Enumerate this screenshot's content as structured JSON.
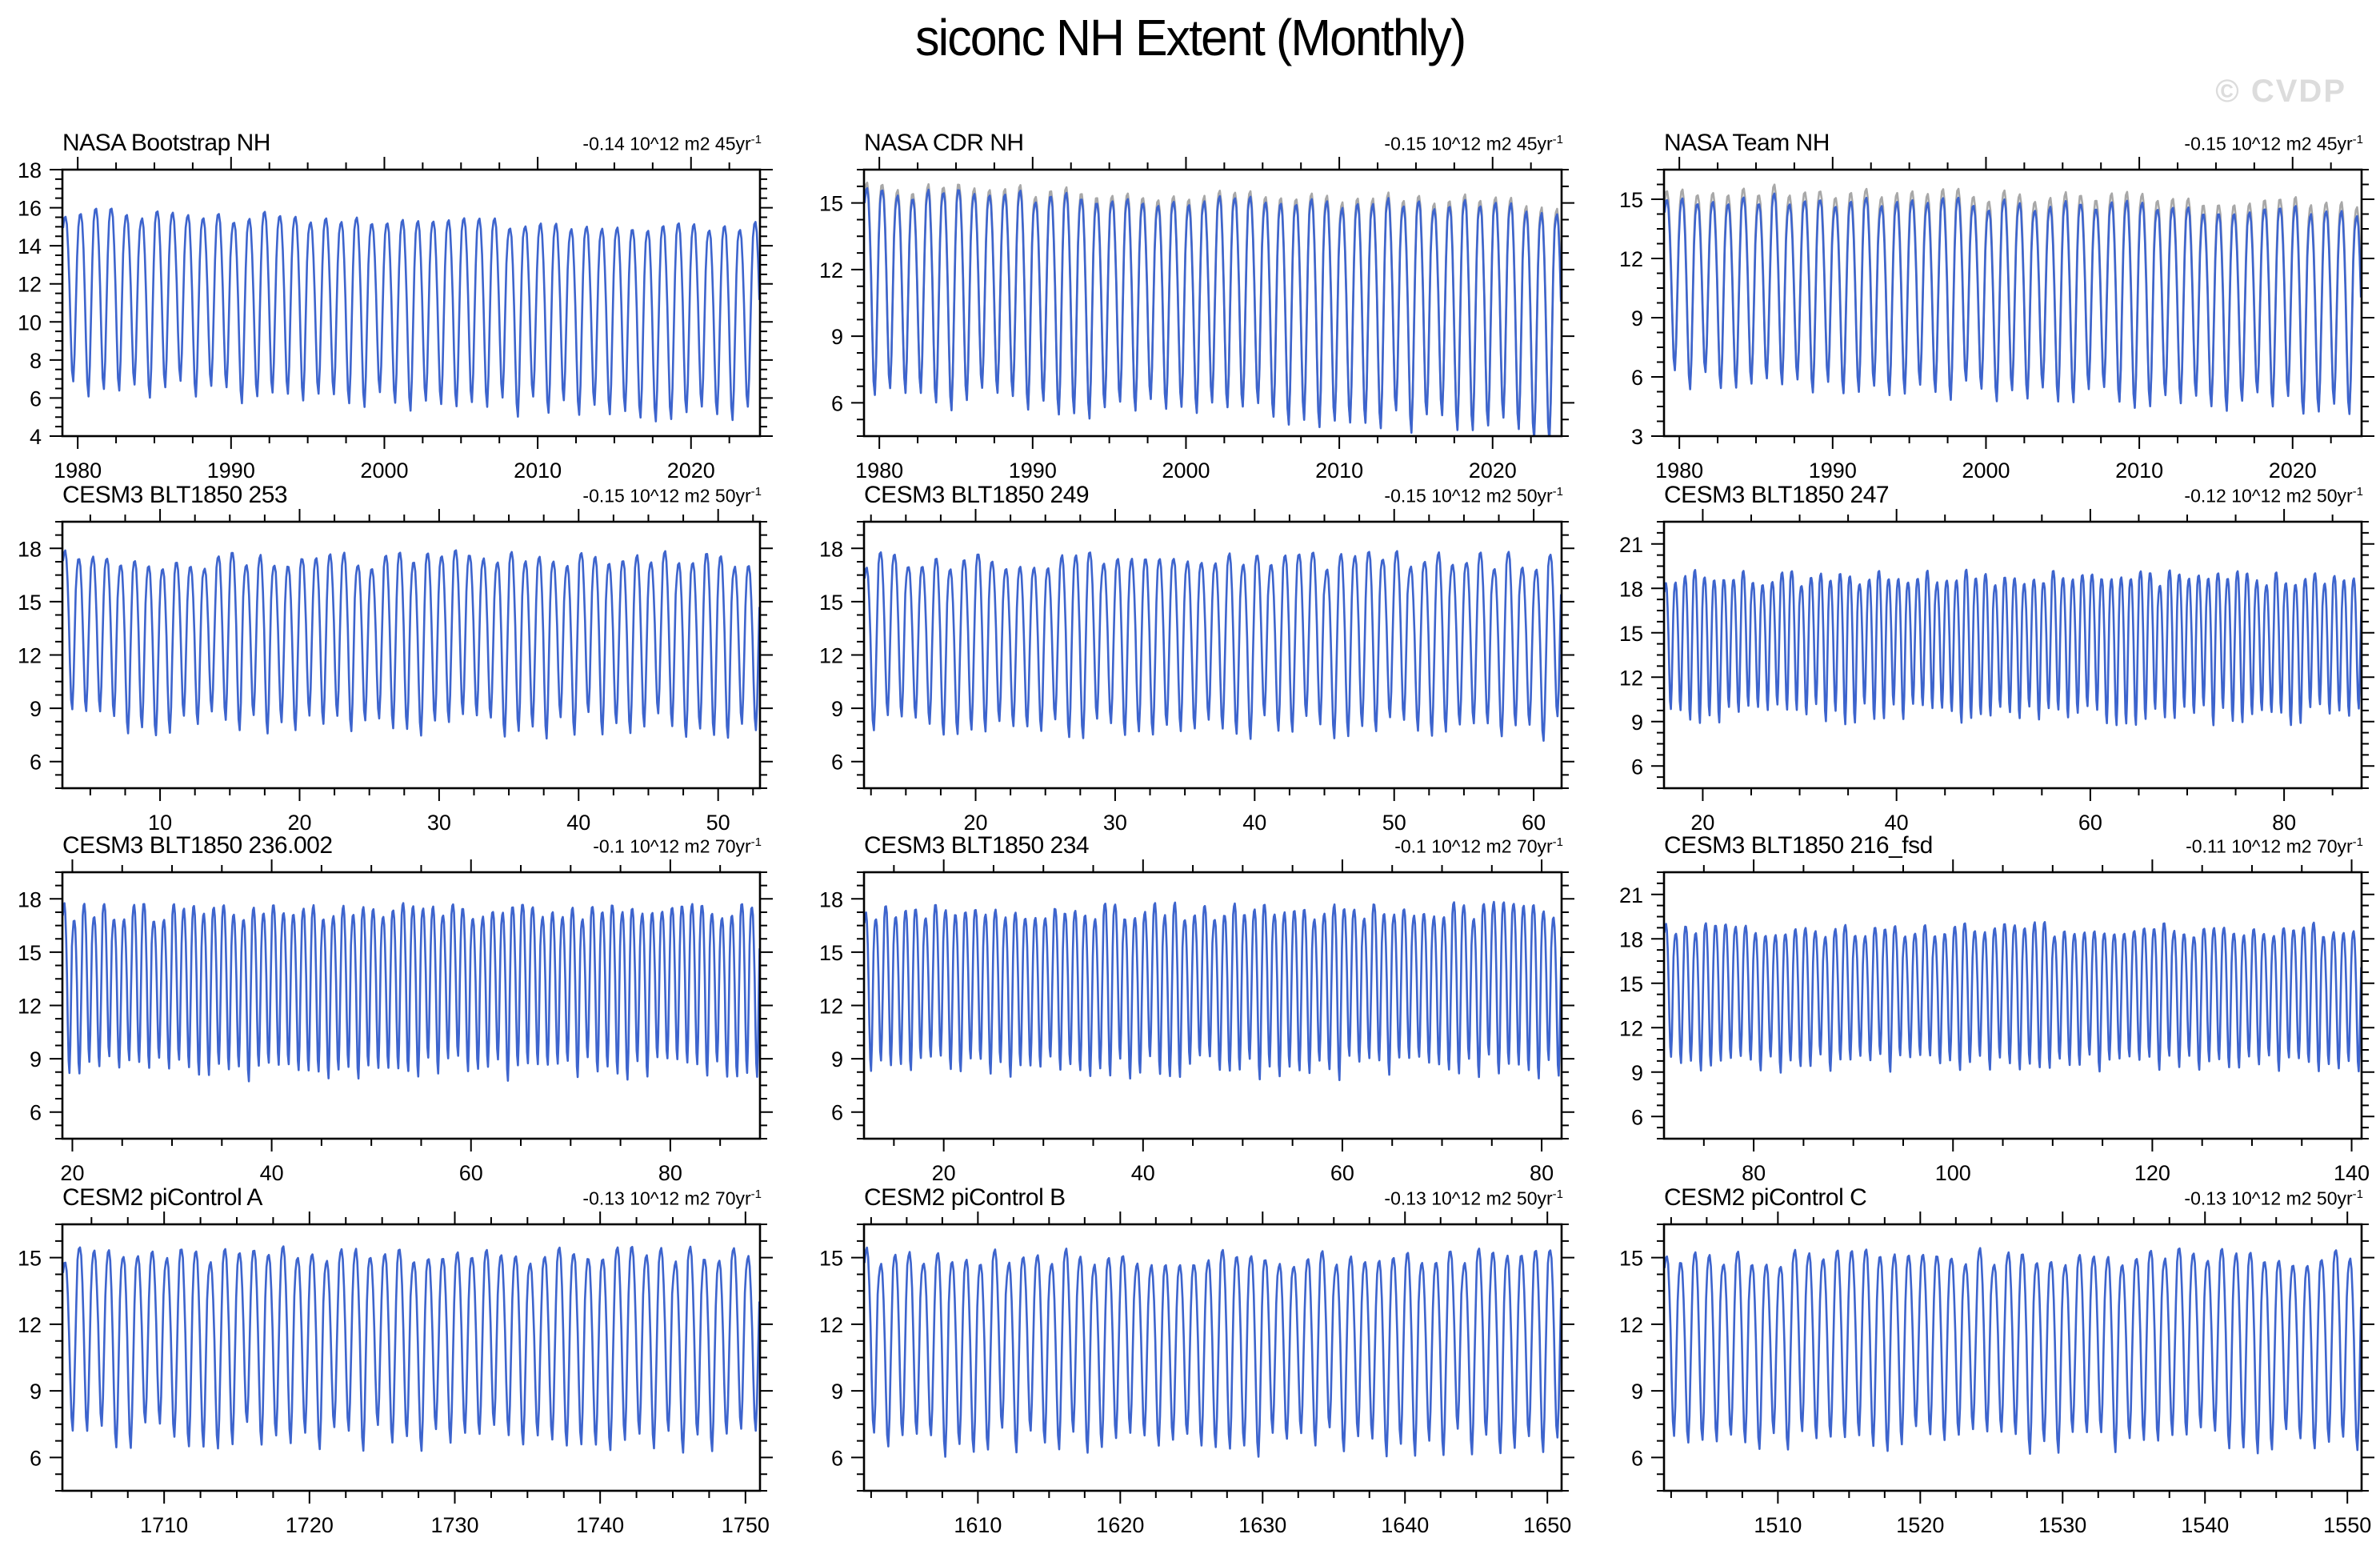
{
  "page": {
    "title": "siconc NH Extent (Monthly)",
    "watermark": "© CVDP"
  },
  "colors": {
    "line_blue": "#3D64CD",
    "line_gray": "#A8A8A8",
    "axis": "#000000",
    "watermark_gray": "#DCDCDC"
  },
  "chart_data": {
    "type": "line",
    "title": "siconc NH Extent (Monthly)",
    "units": "10^12 m2",
    "grid": false,
    "legend": "none",
    "layout": "4 rows x 3 columns of seasonal-cycle time series panels",
    "seasonal_profile_months": [
      0.93,
      0.99,
      1.0,
      0.95,
      0.8,
      0.58,
      0.3,
      0.07,
      0.0,
      0.16,
      0.46,
      0.75
    ],
    "panels": [
      {
        "name": "NASA Bootstrap NH",
        "trend": "-0.14 10^12 m2 45yr",
        "trend_sup": "-1",
        "xlim": [
          1979,
          2024.5
        ],
        "xticks": [
          1980,
          1990,
          2000,
          2010,
          2020
        ],
        "xminor": 2.5,
        "ylim": [
          4,
          18
        ],
        "yticks": [
          4,
          6,
          8,
          10,
          12,
          14,
          16,
          18
        ],
        "yminor": 0.5,
        "seasonal_max_mean": 15.75,
        "seasonal_max_jitter": 0.3,
        "max_trend": -0.85,
        "seasonal_min_mean": 6.6,
        "seasonal_min_jitter": 0.55,
        "min_trend": -1.6,
        "gray_line_offset": 0,
        "seed": 101
      },
      {
        "name": "NASA CDR NH",
        "trend": "-0.15 10^12 m2 45yr",
        "trend_sup": "-1",
        "xlim": [
          1979,
          2024.5
        ],
        "xticks": [
          1980,
          1990,
          2000,
          2010,
          2020
        ],
        "xminor": 2.5,
        "ylim": [
          4.5,
          16.5
        ],
        "yticks": [
          6,
          9,
          12,
          15
        ],
        "yminor": 0.75,
        "seasonal_max_mean": 15.5,
        "seasonal_max_jitter": 0.3,
        "max_trend": -0.8,
        "seasonal_min_mean": 6.3,
        "seasonal_min_jitter": 0.55,
        "min_trend": -1.5,
        "gray_line_offset": 0.25,
        "seed": 102
      },
      {
        "name": "NASA Team NH",
        "trend": "-0.15 10^12 m2 45yr",
        "trend_sup": "-1",
        "xlim": [
          1979,
          2024.5
        ],
        "xticks": [
          1980,
          1990,
          2000,
          2010,
          2020
        ],
        "xminor": 2.5,
        "ylim": [
          3,
          16.5
        ],
        "yticks": [
          3,
          6,
          9,
          12,
          15
        ],
        "yminor": 0.75,
        "seasonal_max_mean": 15.1,
        "seasonal_max_jitter": 0.3,
        "max_trend": -0.8,
        "seasonal_min_mean": 5.9,
        "seasonal_min_jitter": 0.55,
        "min_trend": -1.5,
        "gray_line_offset": 0.45,
        "seed": 103
      },
      {
        "name": "CESM3 BLT1850 253",
        "trend": "-0.15 10^12 m2 50yr",
        "trend_sup": "-1",
        "xlim": [
          3,
          53
        ],
        "xticks": [
          10,
          20,
          30,
          40,
          50
        ],
        "xminor": 2.5,
        "ylim": [
          4.5,
          19.5
        ],
        "yticks": [
          6,
          9,
          12,
          15,
          18
        ],
        "yminor": 0.75,
        "seasonal_max_mean": 17.35,
        "seasonal_max_jitter": 0.55,
        "max_trend": 0,
        "seasonal_min_mean": 8.2,
        "seasonal_min_jitter": 0.75,
        "min_trend": -0.2,
        "gray_line_offset": 0,
        "seed": 104
      },
      {
        "name": "CESM3 BLT1850 249",
        "trend": "-0.15 10^12 m2 50yr",
        "trend_sup": "-1",
        "xlim": [
          12,
          62
        ],
        "xticks": [
          20,
          30,
          40,
          50,
          60
        ],
        "xminor": 2.5,
        "ylim": [
          4.5,
          19.5
        ],
        "yticks": [
          6,
          9,
          12,
          15,
          18
        ],
        "yminor": 0.75,
        "seasonal_max_mean": 17.3,
        "seasonal_max_jitter": 0.55,
        "max_trend": 0,
        "seasonal_min_mean": 8.0,
        "seasonal_min_jitter": 0.75,
        "min_trend": -0.2,
        "gray_line_offset": 0,
        "seed": 105
      },
      {
        "name": "CESM3 BLT1850 247",
        "trend": "-0.12 10^12 m2 50yr",
        "trend_sup": "-1",
        "xlim": [
          16,
          88
        ],
        "xticks": [
          20,
          40,
          60,
          80
        ],
        "xminor": 5,
        "ylim": [
          4.5,
          22.5
        ],
        "yticks": [
          6,
          9,
          12,
          15,
          18,
          21
        ],
        "yminor": 0.75,
        "seasonal_max_mean": 18.7,
        "seasonal_max_jitter": 0.55,
        "max_trend": 0,
        "seasonal_min_mean": 9.6,
        "seasonal_min_jitter": 0.75,
        "min_trend": -0.2,
        "gray_line_offset": 0,
        "seed": 106
      },
      {
        "name": "CESM3 BLT1850 236.002",
        "trend": "-0.1 10^12 m2 70yr",
        "trend_sup": "-1",
        "xlim": [
          19,
          89
        ],
        "xticks": [
          20,
          40,
          60,
          80
        ],
        "xminor": 5,
        "ylim": [
          4.5,
          19.5
        ],
        "yticks": [
          6,
          9,
          12,
          15,
          18
        ],
        "yminor": 0.75,
        "seasonal_max_mean": 17.25,
        "seasonal_max_jitter": 0.5,
        "max_trend": 0,
        "seasonal_min_mean": 8.45,
        "seasonal_min_jitter": 0.7,
        "min_trend": 0,
        "gray_line_offset": 0,
        "seed": 107
      },
      {
        "name": "CESM3 BLT1850 234",
        "trend": "-0.1 10^12 m2 70yr",
        "trend_sup": "-1",
        "xlim": [
          12,
          82
        ],
        "xticks": [
          20,
          40,
          60,
          80
        ],
        "xminor": 5,
        "ylim": [
          4.5,
          19.5
        ],
        "yticks": [
          6,
          9,
          12,
          15,
          18
        ],
        "yminor": 0.75,
        "seasonal_max_mean": 17.3,
        "seasonal_max_jitter": 0.5,
        "max_trend": 0,
        "seasonal_min_mean": 8.5,
        "seasonal_min_jitter": 0.7,
        "min_trend": 0,
        "gray_line_offset": 0,
        "seed": 108
      },
      {
        "name": "CESM3 BLT1850 216_fsd",
        "trend": "-0.11 10^12 m2 70yr",
        "trend_sup": "-1",
        "xlim": [
          71,
          141
        ],
        "xticks": [
          80,
          100,
          120,
          140
        ],
        "xminor": 5,
        "ylim": [
          4.5,
          22.5
        ],
        "yticks": [
          6,
          9,
          12,
          15,
          18,
          21
        ],
        "yminor": 0.75,
        "seasonal_max_mean": 18.6,
        "seasonal_max_jitter": 0.5,
        "max_trend": 0,
        "seasonal_min_mean": 9.6,
        "seasonal_min_jitter": 0.7,
        "min_trend": 0,
        "gray_line_offset": 0,
        "seed": 109
      },
      {
        "name": "CESM2 piControl A",
        "trend": "-0.13 10^12 m2 70yr",
        "trend_sup": "-1",
        "xlim": [
          1703,
          1751
        ],
        "xticks": [
          1710,
          1720,
          1730,
          1740,
          1750
        ],
        "xminor": 2.5,
        "ylim": [
          4.5,
          16.5
        ],
        "yticks": [
          6,
          9,
          12,
          15
        ],
        "yminor": 0.75,
        "seasonal_max_mean": 15.1,
        "seasonal_max_jitter": 0.4,
        "max_trend": 0,
        "seasonal_min_mean": 6.9,
        "seasonal_min_jitter": 0.65,
        "min_trend": 0,
        "gray_line_offset": 0,
        "seed": 110
      },
      {
        "name": "CESM2 piControl B",
        "trend": "-0.13 10^12 m2 50yr",
        "trend_sup": "-1",
        "xlim": [
          1602,
          1651
        ],
        "xticks": [
          1610,
          1620,
          1630,
          1640,
          1650
        ],
        "xminor": 2.5,
        "ylim": [
          4.5,
          16.5
        ],
        "yticks": [
          6,
          9,
          12,
          15
        ],
        "yminor": 0.75,
        "seasonal_max_mean": 15.0,
        "seasonal_max_jitter": 0.4,
        "max_trend": 0,
        "seasonal_min_mean": 6.7,
        "seasonal_min_jitter": 0.65,
        "min_trend": 0,
        "gray_line_offset": 0,
        "seed": 111
      },
      {
        "name": "CESM2 piControl C",
        "trend": "-0.13 10^12 m2 50yr",
        "trend_sup": "-1",
        "xlim": [
          1502,
          1551
        ],
        "xticks": [
          1510,
          1520,
          1530,
          1540,
          1550
        ],
        "xminor": 2.5,
        "ylim": [
          4.5,
          16.5
        ],
        "yticks": [
          6,
          9,
          12,
          15
        ],
        "yminor": 0.75,
        "seasonal_max_mean": 15.0,
        "seasonal_max_jitter": 0.4,
        "max_trend": 0,
        "seasonal_min_mean": 6.8,
        "seasonal_min_jitter": 0.65,
        "min_trend": 0,
        "gray_line_offset": 0,
        "seed": 112
      }
    ]
  }
}
